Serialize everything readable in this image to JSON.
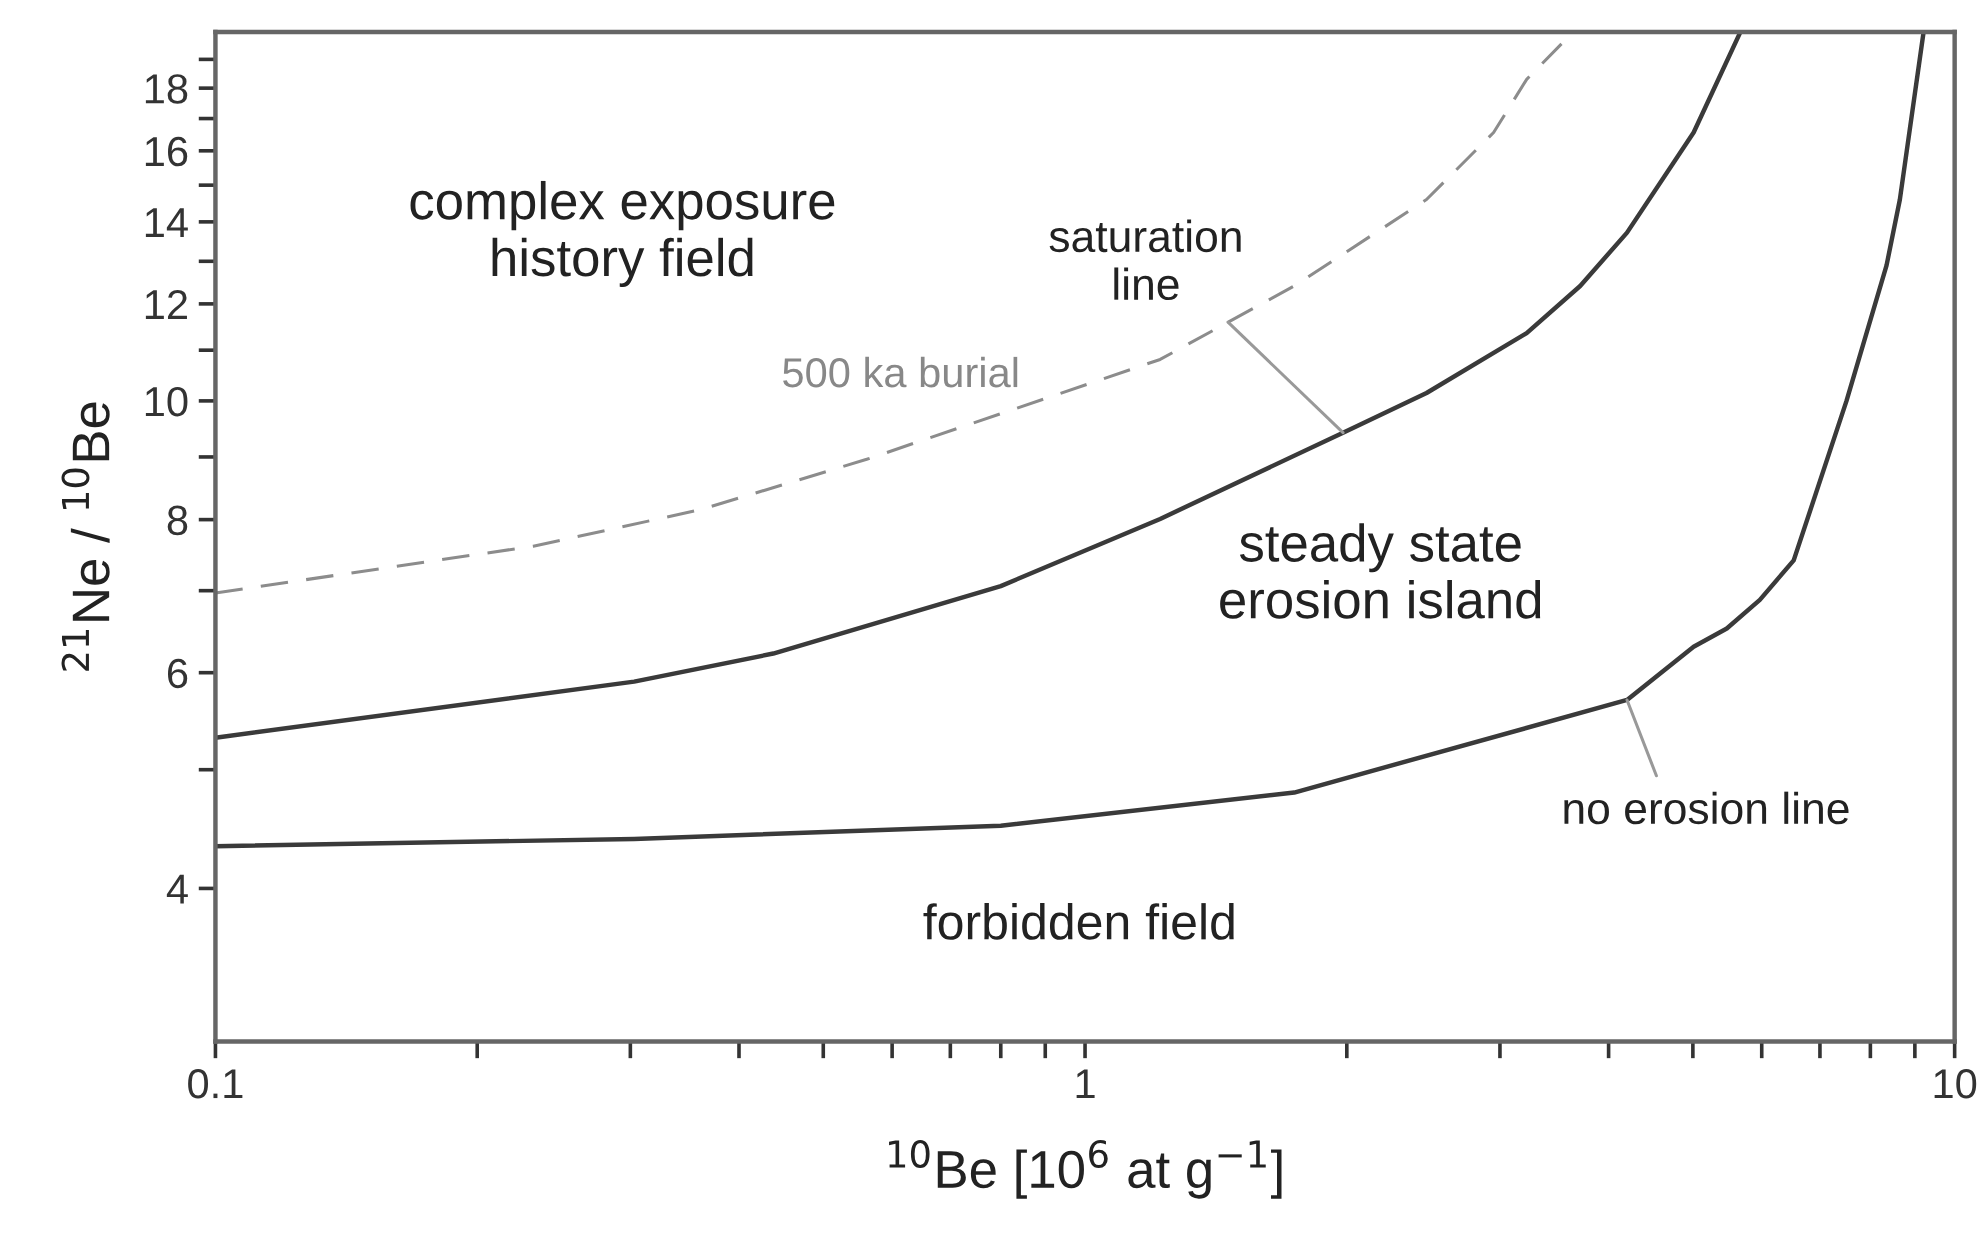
{
  "chart_data": {
    "type": "line",
    "xlabel": "$^{10}$Be [10$^{6}$ at g$^{−1}$]",
    "ylabel": "$^{21}$Ne / $^{10}$Be",
    "log": "xy",
    "xlim": [
      0.1,
      10
    ],
    "ylim": [
      3,
      20
    ],
    "xticks": [
      0.1,
      {
        "value": 0.2,
        "label": null
      },
      {
        "value": 0.3,
        "label": null
      },
      {
        "value": 0.4,
        "label": null
      },
      {
        "value": 0.5,
        "label": null
      },
      {
        "value": 0.6,
        "label": null
      },
      {
        "value": 0.7,
        "label": null
      },
      {
        "value": 0.8,
        "label": null
      },
      {
        "value": 0.9,
        "label": null
      },
      1,
      {
        "value": 2,
        "label": null
      },
      {
        "value": 3,
        "label": null
      },
      {
        "value": 4,
        "label": null
      },
      {
        "value": 5,
        "label": null
      },
      {
        "value": 6,
        "label": null
      },
      {
        "value": 7,
        "label": null
      },
      {
        "value": 8,
        "label": null
      },
      {
        "value": 9,
        "label": null
      },
      10
    ],
    "yticks": [
      4,
      {
        "value": 5,
        "label": null
      },
      6,
      {
        "value": 7,
        "label": null
      },
      8,
      {
        "value": 9,
        "label": null
      },
      10,
      {
        "value": 11,
        "label": null
      },
      12,
      {
        "value": 13,
        "label": null
      },
      14,
      {
        "value": 15,
        "label": null
      },
      16,
      {
        "value": 17,
        "label": null
      },
      18,
      {
        "value": 19,
        "label": null
      }
    ],
    "series": [
      {
        "color": "#3a3a3a",
        "line_style": "solid",
        "x": [
          0.1,
          0.303,
          0.8,
          1.74,
          4.2,
          5.01,
          5.47,
          5.97,
          6.53,
          7.51,
          8.35,
          8.65,
          9.21
        ],
        "values": [
          4.33,
          4.39,
          4.5,
          4.79,
          5.7,
          6.3,
          6.52,
          6.88,
          7.41,
          10.0,
          12.9,
          14.6,
          20.0
        ]
      },
      {
        "color": "#3a3a3a",
        "line_style": "solid",
        "x": [
          0.1,
          0.303,
          0.438,
          0.8,
          1.22,
          1.98,
          2.47,
          3.22,
          3.71,
          4.2,
          5.01,
          5.67
        ],
        "values": [
          5.31,
          5.9,
          6.22,
          7.06,
          8.01,
          9.42,
          10.15,
          11.36,
          12.41,
          13.72,
          16.56,
          20.0
        ]
      },
      {
        "color": "#8c8c8c",
        "line_style": "dashed",
        "x": [
          0.1,
          0.232,
          0.361,
          0.561,
          1.22,
          1.74,
          2.47,
          2.95,
          3.22,
          3.64
        ],
        "values": [
          6.97,
          7.61,
          8.15,
          8.96,
          10.81,
          12.41,
          14.6,
          16.56,
          18.3,
          20.0
        ]
      }
    ],
    "annotations": [
      "complex exposure\nhistory field",
      "500 ka burial",
      {
        "text": "saturation\nline",
        "x": 1.98,
        "y": 9.42
      },
      "steady state\nerosion island",
      "forbidden field",
      {
        "text": "no erosion line",
        "x": 4.2,
        "y": 5.7
      }
    ]
  }
}
